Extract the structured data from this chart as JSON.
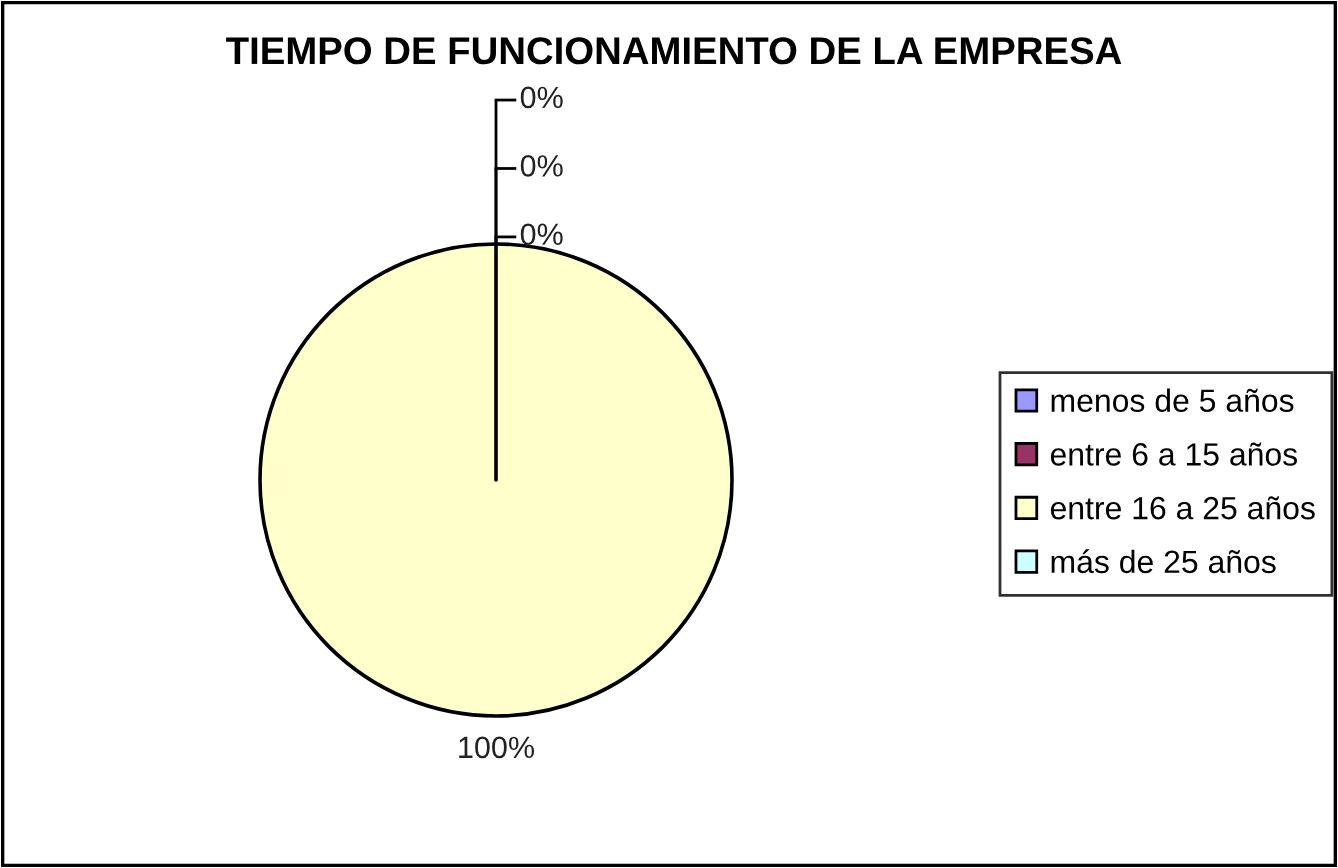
{
  "chart_data": {
    "type": "pie",
    "title": "TIEMPO DE FUNCIONAMIENTO DE LA EMPRESA",
    "categories": [
      "menos de 5 años",
      "entre 6 a 15 años",
      "entre 16 a 25 años",
      "más de 25 años"
    ],
    "values": [
      0,
      0,
      100,
      0
    ],
    "colors": [
      "#9999ff",
      "#993366",
      "#ffffcc",
      "#ccffff"
    ],
    "value_labels": [
      "0%",
      "0%",
      "100%",
      "0%"
    ],
    "legend": "right"
  }
}
